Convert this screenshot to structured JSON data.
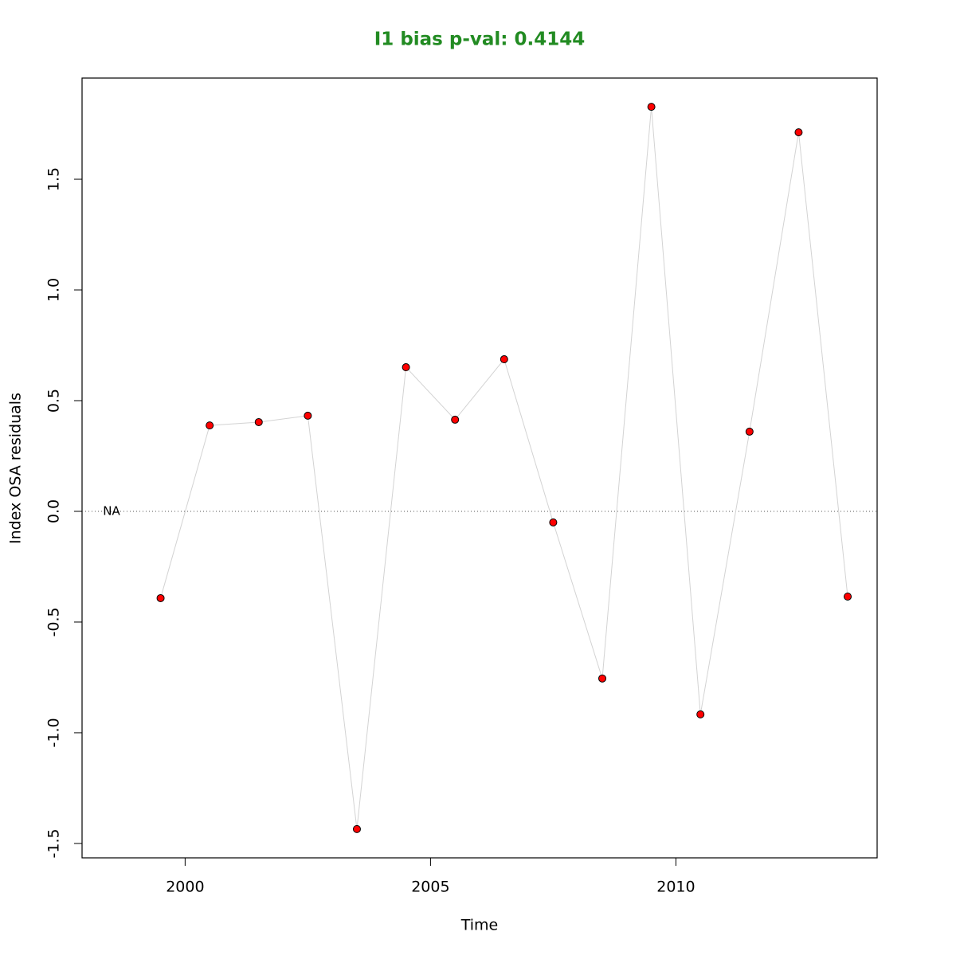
{
  "chart_data": {
    "type": "line",
    "title": "I1 bias p-val: 0.4144",
    "title_color": "#228b22",
    "x_label": "Time",
    "y_label": "Index OSA residuals",
    "x": [
      1999.5,
      2000.5,
      2001.5,
      2002.5,
      2003.5,
      2004.5,
      2005.5,
      2006.5,
      2007.5,
      2008.5,
      2009.5,
      2010.5,
      2011.5,
      2012.5,
      2013.5
    ],
    "series": [
      {
        "color": "#d3d3d3",
        "marker_color": "#ff0000",
        "values": [
          -0.392,
          0.388,
          0.403,
          0.432,
          -1.435,
          0.651,
          0.414,
          0.687,
          -0.05,
          -0.755,
          1.827,
          -0.917,
          0.36,
          1.712,
          -0.385
        ]
      }
    ],
    "xlim": [
      1997.9,
      2014.1
    ],
    "ylim": [
      -1.565,
      1.957
    ],
    "xticks": [
      2000,
      2005,
      2010
    ],
    "yticks": [
      -1.5,
      -1.0,
      -0.5,
      0.0,
      0.5,
      1.0,
      1.5
    ],
    "ytick_labels": [
      "-1.5",
      "-1.0",
      "-0.5",
      "0.0",
      "0.5",
      "1.0",
      "1.5"
    ],
    "hline": 0,
    "annotations": [
      {
        "text": "NA",
        "x": 1998.5,
        "y": 0
      }
    ]
  }
}
